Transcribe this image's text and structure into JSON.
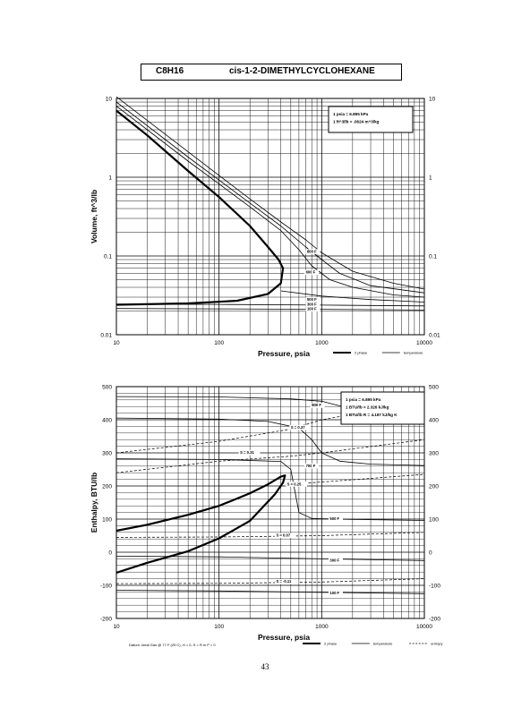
{
  "header": {
    "formula": "C8H16",
    "name": "cis-1-2-DIMETHYLCYCLOHEXANE"
  },
  "page_number": "43",
  "footnote": "Datum: Ideal Gas @ 77 F (25 C),  H = 0,  S = R ln P = 0",
  "chart_data": [
    {
      "type": "line",
      "xscale": "log",
      "yscale": "log",
      "xlim": [
        10,
        10000
      ],
      "ylim": [
        0.01,
        10
      ],
      "xlabel": "Pressure,  psia",
      "ylabel": "Volume,  ft^3/lb",
      "x_ticks": [
        10,
        100,
        1000,
        10000
      ],
      "x_tick_labels": [
        "10",
        "100",
        "1000",
        "10000"
      ],
      "y_ticks": [
        0.01,
        0.1,
        1,
        10
      ],
      "y_tick_labels": [
        "0.01",
        "0.1",
        "1",
        "10"
      ],
      "grid": true,
      "conversion_note": [
        "1 psia  =  6.895 kPa",
        "1 ft^3/lb  =  .0624 m^3/kg"
      ],
      "legend": {
        "position": "bottom-right",
        "items": [
          {
            "label": "2 phase",
            "style": "thick"
          },
          {
            "label": "temperature",
            "style": "thin"
          }
        ]
      },
      "series": [
        {
          "kind": "2phase",
          "points": [
            [
              10,
              7
            ],
            [
              20,
              3.4
            ],
            [
              50,
              1.2
            ],
            [
              100,
              0.56
            ],
            [
              200,
              0.24
            ],
            [
              300,
              0.13
            ],
            [
              380,
              0.09
            ],
            [
              420,
              0.07
            ],
            [
              400,
              0.045
            ],
            [
              300,
              0.033
            ],
            [
              150,
              0.027
            ],
            [
              50,
              0.025
            ],
            [
              10,
              0.024
            ]
          ]
        },
        {
          "kind": "temperature",
          "label": "600 F",
          "label_at": [
            700,
            0.06
          ],
          "points": [
            [
              10,
              8
            ],
            [
              50,
              1.6
            ],
            [
              100,
              0.82
            ],
            [
              200,
              0.42
            ],
            [
              400,
              0.21
            ],
            [
              600,
              0.12
            ],
            [
              800,
              0.075
            ],
            [
              1200,
              0.05
            ],
            [
              2000,
              0.04
            ],
            [
              5000,
              0.032
            ],
            [
              10000,
              0.03
            ]
          ]
        },
        {
          "kind": "temperature",
          "label": "700 F",
          "points": [
            [
              10,
              9
            ],
            [
              50,
              1.8
            ],
            [
              100,
              0.92
            ],
            [
              200,
              0.47
            ],
            [
              400,
              0.24
            ],
            [
              700,
              0.13
            ],
            [
              1000,
              0.09
            ],
            [
              1500,
              0.06
            ],
            [
              3000,
              0.042
            ],
            [
              10000,
              0.034
            ]
          ]
        },
        {
          "kind": "temperature",
          "label": "800 F",
          "label_at": [
            720,
            0.11
          ],
          "points": [
            [
              10,
              10.5
            ],
            [
              50,
              2.1
            ],
            [
              100,
              1.05
            ],
            [
              200,
              0.53
            ],
            [
              400,
              0.27
            ],
            [
              700,
              0.16
            ],
            [
              1000,
              0.11
            ],
            [
              2000,
              0.064
            ],
            [
              5000,
              0.045
            ],
            [
              10000,
              0.038
            ]
          ]
        },
        {
          "kind": "temperature",
          "label": "500 F",
          "label_at": [
            720,
            0.027
          ],
          "points": [
            [
              400,
              0.036
            ],
            [
              1000,
              0.031
            ],
            [
              3000,
              0.028
            ],
            [
              10000,
              0.026
            ]
          ]
        },
        {
          "kind": "temperature",
          "label": "300 F",
          "label_at": [
            720,
            0.0235
          ],
          "points": [
            [
              10,
              0.0245
            ],
            [
              100,
              0.0243
            ],
            [
              1000,
              0.0238
            ],
            [
              10000,
              0.0232
            ]
          ]
        },
        {
          "kind": "temperature",
          "label": "100 F",
          "label_at": [
            720,
            0.0205
          ],
          "points": [
            [
              10,
              0.0215
            ],
            [
              100,
              0.0213
            ],
            [
              1000,
              0.021
            ],
            [
              10000,
              0.0206
            ]
          ]
        }
      ]
    },
    {
      "type": "line",
      "xscale": "log",
      "yscale": "linear",
      "xlim": [
        10,
        10000
      ],
      "ylim": [
        -200,
        500
      ],
      "xlabel": "Pressure,  psia",
      "ylabel": "Enthalpy,  BTU/lb",
      "x_ticks": [
        10,
        100,
        1000,
        10000
      ],
      "x_tick_labels": [
        "10",
        "100",
        "1000",
        "10000"
      ],
      "y_ticks": [
        -200,
        -100,
        0,
        100,
        200,
        300,
        400,
        500
      ],
      "y_tick_labels": [
        "-200",
        "-100",
        "0",
        "100",
        "200",
        "300",
        "400",
        "500"
      ],
      "grid": true,
      "conversion_note": [
        "1 psia  =  6.895 kPa",
        "1 BTU/lb  =  2.326 kJ/kg",
        "1 BTU/lb R  =  4.187 kJ/kg K"
      ],
      "legend": {
        "position": "bottom-right",
        "items": [
          {
            "label": "2 phase",
            "style": "thick"
          },
          {
            "label": "temperature",
            "style": "thin"
          },
          {
            "label": "entropy",
            "style": "dashed"
          }
        ]
      },
      "series": [
        {
          "kind": "2phase",
          "points": [
            [
              10,
              65
            ],
            [
              20,
              83
            ],
            [
              50,
              113
            ],
            [
              100,
              140
            ],
            [
              200,
              178
            ],
            [
              300,
              205
            ],
            [
              400,
              228
            ],
            [
              440,
              232
            ],
            [
              420,
              210
            ],
            [
              350,
              175
            ],
            [
              200,
              95
            ],
            [
              100,
              42
            ],
            [
              50,
              3
            ],
            [
              20,
              -32
            ],
            [
              10,
              -62
            ]
          ]
        },
        {
          "kind": "temperature",
          "label": "800 F",
          "label_at": [
            800,
            440
          ],
          "points": [
            [
              10,
              470
            ],
            [
              100,
              469
            ],
            [
              500,
              463
            ],
            [
              1000,
              456
            ],
            [
              1500,
              442
            ],
            [
              3000,
              432
            ],
            [
              10000,
              422
            ]
          ]
        },
        {
          "kind": "temperature",
          "label": "700 F",
          "label_at": [
            700,
            257
          ],
          "points": [
            [
              10,
              405
            ],
            [
              100,
              402
            ],
            [
              300,
              395
            ],
            [
              600,
              375
            ],
            [
              800,
              340
            ],
            [
              1000,
              300
            ],
            [
              1500,
              275
            ],
            [
              3000,
              266
            ],
            [
              10000,
              262
            ]
          ]
        },
        {
          "kind": "temperature",
          "label": "500 F",
          "label_at": [
            1200,
            97
          ],
          "points": [
            [
              10,
              282
            ],
            [
              100,
              280
            ],
            [
              400,
              274
            ],
            [
              500,
              250
            ],
            [
              600,
              120
            ],
            [
              800,
              102
            ],
            [
              2000,
              99
            ],
            [
              10000,
              96
            ]
          ]
        },
        {
          "kind": "temperature",
          "label": "300 F",
          "label_at": [
            1200,
            -28
          ],
          "points": [
            [
              10,
              -12
            ],
            [
              100,
              -14
            ],
            [
              1000,
              -20
            ],
            [
              10000,
              -25
            ]
          ]
        },
        {
          "kind": "temperature",
          "label": "100 F",
          "label_at": [
            1200,
            -127
          ],
          "points": [
            [
              10,
              -115
            ],
            [
              100,
              -117
            ],
            [
              1000,
              -121
            ],
            [
              10000,
              -125
            ]
          ]
        },
        {
          "kind": "entropy",
          "label": "S = 0.37",
          "label_at": [
            500,
            373
          ],
          "points": [
            [
              10,
              300
            ],
            [
              100,
              335
            ],
            [
              500,
              372
            ],
            [
              1000,
              400
            ],
            [
              10000,
              455
            ]
          ]
        },
        {
          "kind": "entropy",
          "label": "S = 0.31",
          "label_at": [
            160,
            297
          ],
          "points": [
            [
              10,
              240
            ],
            [
              100,
              275
            ],
            [
              500,
              290
            ],
            [
              1000,
              300
            ],
            [
              10000,
              340
            ]
          ]
        },
        {
          "kind": "entropy",
          "label": "S = 0.25",
          "label_at": [
            460,
            202
          ],
          "points": [
            [
              450,
              205
            ],
            [
              1000,
              212
            ],
            [
              10000,
              235
            ]
          ]
        },
        {
          "kind": "entropy",
          "label": "S = 0.07",
          "label_at": [
            360,
            47
          ],
          "points": [
            [
              10,
              45
            ],
            [
              100,
              46
            ],
            [
              1000,
              50
            ],
            [
              10000,
              60
            ]
          ]
        },
        {
          "kind": "entropy",
          "label": "S = -0.11",
          "label_at": [
            360,
            -92
          ],
          "points": [
            [
              10,
              -95
            ],
            [
              100,
              -94
            ],
            [
              1000,
              -90
            ],
            [
              10000,
              -80
            ]
          ]
        }
      ]
    }
  ]
}
